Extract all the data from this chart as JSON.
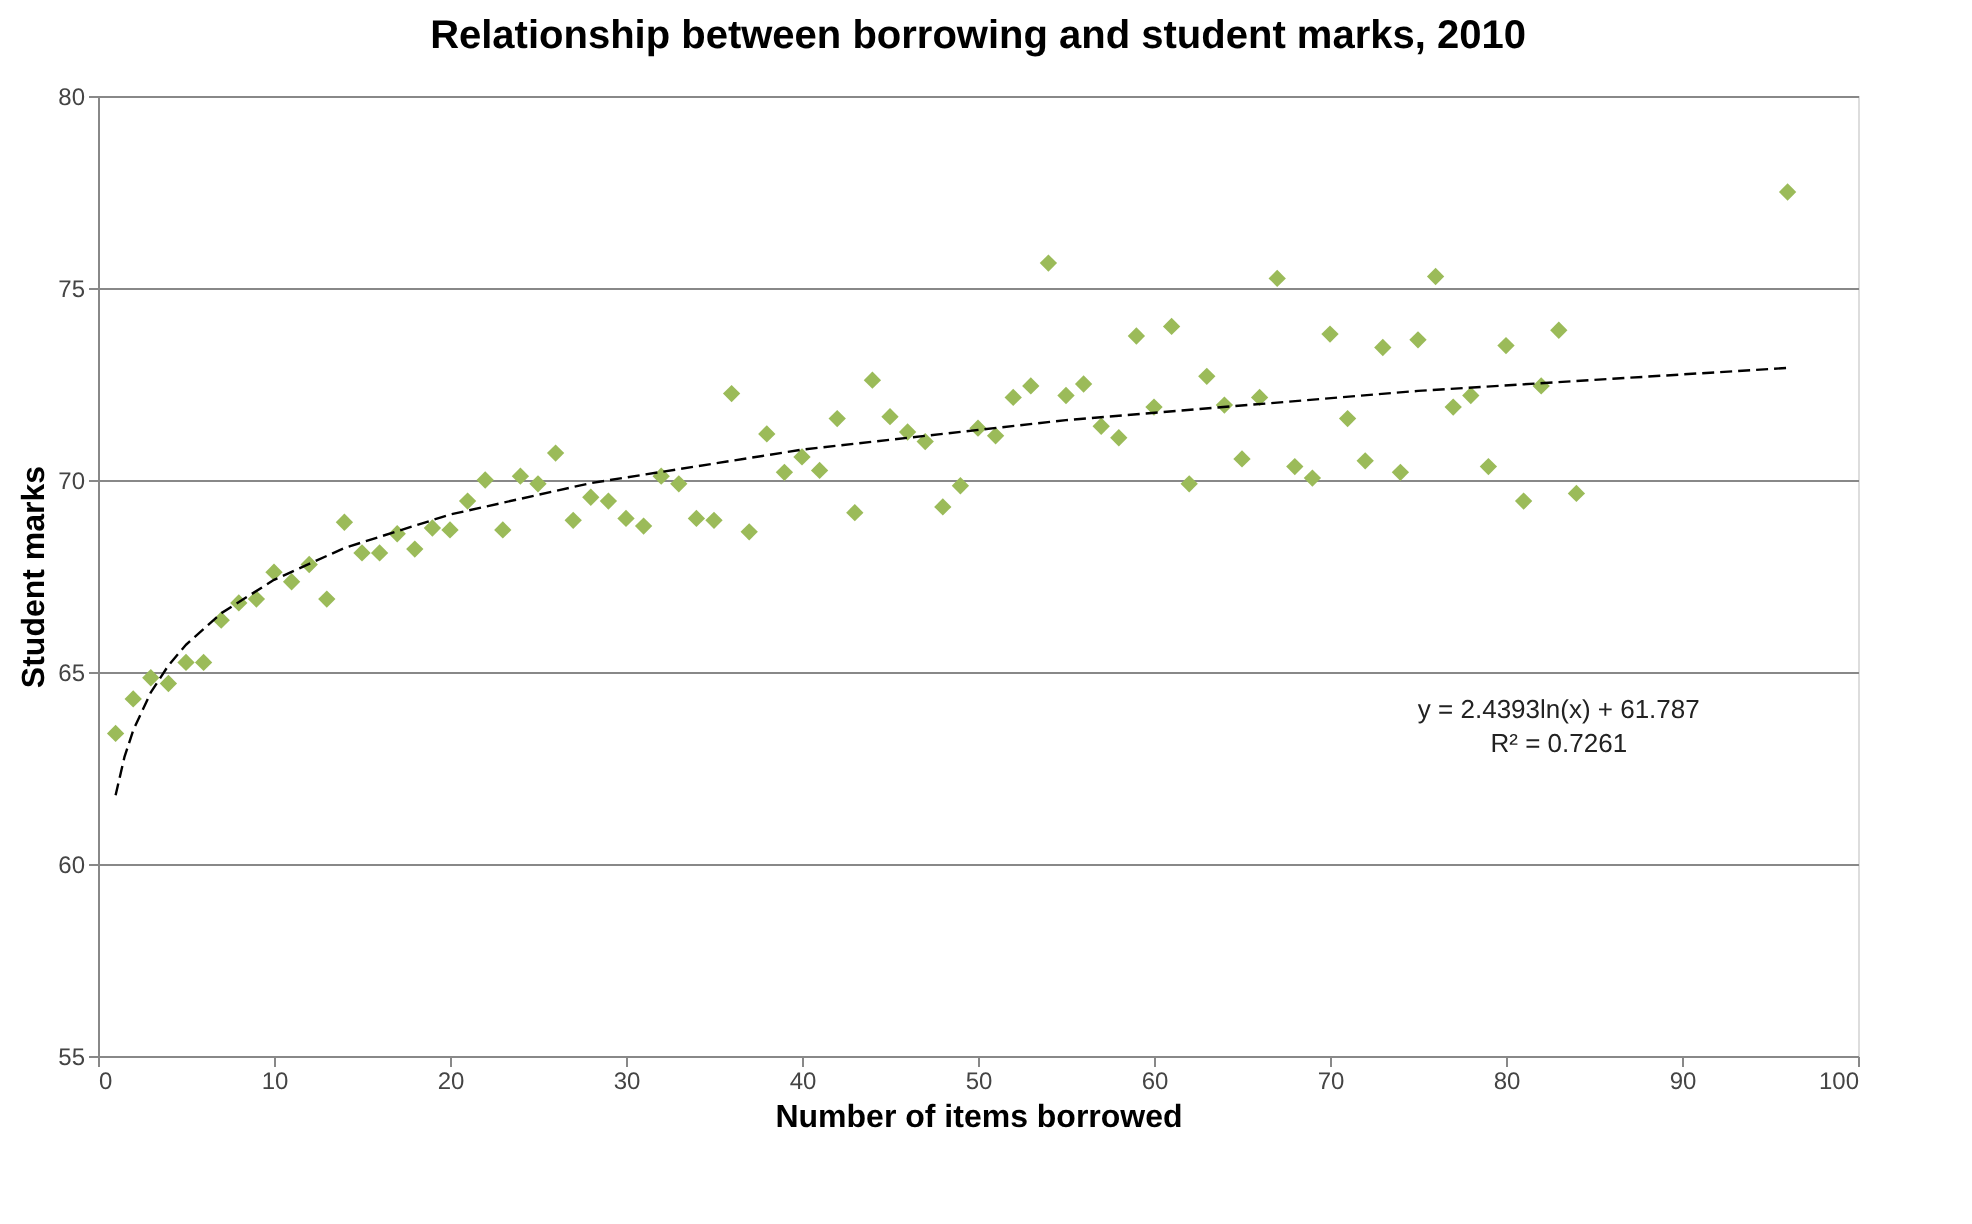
{
  "chart_data": {
    "type": "scatter",
    "title": "Relationship between borrowing and student marks, 2010",
    "xlabel": "Number of items borrowed",
    "ylabel": "Student marks",
    "xlim": [
      0,
      100
    ],
    "xticks": [
      0,
      10,
      20,
      30,
      40,
      50,
      60,
      70,
      80,
      90,
      100
    ],
    "ylim": [
      55,
      80
    ],
    "yticks": [
      55,
      60,
      65,
      70,
      75,
      80
    ],
    "grid": "y",
    "annotations": [
      "y = 2.4393ln(x) + 61.787",
      "R² = 0.7261"
    ],
    "series": [
      {
        "marker": "diamond",
        "color": "#9bbb59",
        "x": [
          1,
          2,
          3,
          4,
          5,
          6,
          7,
          8,
          9,
          10,
          11,
          12,
          13,
          14,
          15,
          16,
          17,
          18,
          19,
          20,
          21,
          22,
          23,
          24,
          25,
          26,
          27,
          28,
          29,
          30,
          31,
          32,
          33,
          34,
          35,
          36,
          37,
          38,
          39,
          40,
          41,
          42,
          43,
          44,
          45,
          46,
          47,
          48,
          49,
          50,
          51,
          52,
          53,
          54,
          55,
          56,
          57,
          58,
          59,
          60,
          61,
          62,
          63,
          64,
          65,
          66,
          67,
          68,
          69,
          70,
          71,
          72,
          73,
          74,
          75,
          76,
          77,
          78,
          79,
          80,
          81,
          82,
          83,
          84,
          96
        ],
        "values": [
          63.4,
          64.3,
          64.85,
          64.7,
          65.25,
          65.25,
          66.35,
          66.8,
          66.9,
          67.6,
          67.35,
          67.8,
          66.9,
          68.9,
          68.1,
          68.1,
          68.6,
          68.2,
          68.75,
          68.7,
          69.45,
          70.0,
          68.7,
          70.1,
          69.9,
          70.7,
          68.95,
          69.55,
          69.45,
          69.0,
          68.8,
          70.1,
          69.9,
          69.0,
          68.95,
          72.25,
          68.65,
          71.2,
          70.2,
          70.6,
          70.25,
          71.6,
          69.15,
          72.6,
          71.65,
          71.25,
          71.0,
          69.3,
          69.85,
          71.35,
          71.15,
          72.15,
          72.45,
          75.65,
          72.2,
          72.5,
          71.4,
          71.1,
          73.75,
          71.9,
          74.0,
          69.9,
          72.7,
          71.95,
          70.55,
          72.15,
          75.25,
          70.35,
          70.05,
          73.8,
          71.6,
          70.5,
          73.45,
          70.2,
          73.65,
          75.3,
          71.9,
          72.2,
          70.35,
          73.5,
          69.45,
          72.45,
          73.9,
          69.65,
          77.5
        ]
      },
      {
        "type": "line",
        "color": "#000000",
        "line_style": "dashed",
        "marker": "none",
        "x": [
          1,
          1.5,
          2,
          3,
          4,
          5,
          7,
          10,
          14,
          20,
          28,
          40,
          55,
          75,
          96
        ],
        "values": [
          61.79,
          62.78,
          63.48,
          64.47,
          65.17,
          65.71,
          66.53,
          67.4,
          68.23,
          69.1,
          69.92,
          70.79,
          71.56,
          72.32,
          72.92
        ]
      }
    ]
  }
}
